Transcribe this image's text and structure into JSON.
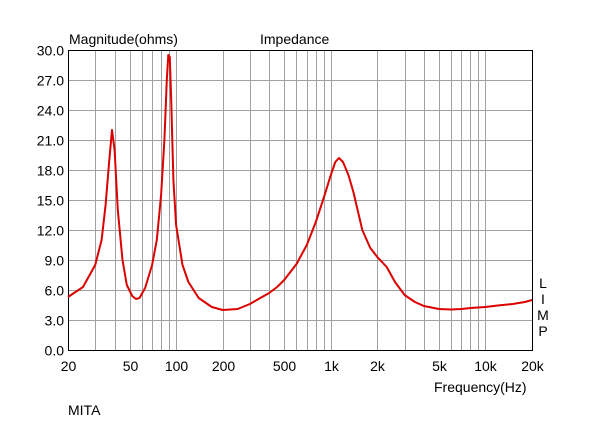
{
  "chart_data": {
    "type": "line",
    "title": "Impedance",
    "ylabel": "Magnitude(ohms)",
    "xlabel": "Frequency(Hz)",
    "x_scale": "log",
    "xlim": [
      20,
      20000
    ],
    "ylim": [
      0,
      30
    ],
    "grid": true,
    "y_ticks": [
      {
        "value": 0,
        "label": "0.0"
      },
      {
        "value": 3,
        "label": "3.0"
      },
      {
        "value": 6,
        "label": "6.0"
      },
      {
        "value": 9,
        "label": "9.0"
      },
      {
        "value": 12,
        "label": "12.0"
      },
      {
        "value": 15,
        "label": "15.0"
      },
      {
        "value": 18,
        "label": "18.0"
      },
      {
        "value": 21,
        "label": "21.0"
      },
      {
        "value": 24,
        "label": "24.0"
      },
      {
        "value": 27,
        "label": "27.0"
      },
      {
        "value": 30,
        "label": "30.0"
      }
    ],
    "x_ticks": [
      {
        "value": 20,
        "label": "20"
      },
      {
        "value": 50,
        "label": "50"
      },
      {
        "value": 100,
        "label": "100"
      },
      {
        "value": 200,
        "label": "200"
      },
      {
        "value": 500,
        "label": "500"
      },
      {
        "value": 1000,
        "label": "1k"
      },
      {
        "value": 2000,
        "label": "2k"
      },
      {
        "value": 5000,
        "label": "5k"
      },
      {
        "value": 10000,
        "label": "10k"
      },
      {
        "value": 20000,
        "label": "20k"
      }
    ],
    "x_minor": [
      30,
      40,
      60,
      70,
      80,
      90,
      300,
      400,
      600,
      700,
      800,
      900,
      3000,
      4000,
      6000,
      7000,
      8000,
      9000
    ],
    "series": [
      {
        "color": "#dd0000",
        "points": [
          [
            20,
            5.3
          ],
          [
            25,
            6.3
          ],
          [
            30,
            8.5
          ],
          [
            33,
            11.0
          ],
          [
            35,
            14.5
          ],
          [
            37,
            19.0
          ],
          [
            38.5,
            22.0
          ],
          [
            40,
            20.0
          ],
          [
            42,
            14.0
          ],
          [
            45,
            9.0
          ],
          [
            48,
            6.5
          ],
          [
            52,
            5.4
          ],
          [
            55,
            5.1
          ],
          [
            58,
            5.2
          ],
          [
            63,
            6.2
          ],
          [
            70,
            8.5
          ],
          [
            75,
            11.0
          ],
          [
            80,
            15.5
          ],
          [
            84,
            21.0
          ],
          [
            87,
            27.0
          ],
          [
            89,
            29.5
          ],
          [
            91,
            29.3
          ],
          [
            93,
            25.0
          ],
          [
            96,
            17.0
          ],
          [
            100,
            12.5
          ],
          [
            110,
            8.5
          ],
          [
            120,
            6.8
          ],
          [
            140,
            5.2
          ],
          [
            170,
            4.3
          ],
          [
            200,
            4.0
          ],
          [
            250,
            4.1
          ],
          [
            300,
            4.6
          ],
          [
            350,
            5.2
          ],
          [
            400,
            5.7
          ],
          [
            450,
            6.3
          ],
          [
            500,
            7.0
          ],
          [
            600,
            8.6
          ],
          [
            700,
            10.5
          ],
          [
            800,
            12.8
          ],
          [
            900,
            15.2
          ],
          [
            1000,
            17.5
          ],
          [
            1070,
            18.8
          ],
          [
            1130,
            19.2
          ],
          [
            1200,
            18.8
          ],
          [
            1300,
            17.5
          ],
          [
            1400,
            15.8
          ],
          [
            1600,
            12.0
          ],
          [
            1800,
            10.2
          ],
          [
            2000,
            9.3
          ],
          [
            2300,
            8.3
          ],
          [
            2600,
            6.8
          ],
          [
            3000,
            5.5
          ],
          [
            3500,
            4.8
          ],
          [
            4000,
            4.4
          ],
          [
            5000,
            4.1
          ],
          [
            6000,
            4.05
          ],
          [
            7000,
            4.1
          ],
          [
            8000,
            4.2
          ],
          [
            10000,
            4.3
          ],
          [
            12000,
            4.45
          ],
          [
            15000,
            4.6
          ],
          [
            18000,
            4.8
          ],
          [
            20000,
            5.0
          ]
        ]
      }
    ]
  },
  "side_label": [
    "L",
    "I",
    "M",
    "P"
  ],
  "brand": "MITA"
}
